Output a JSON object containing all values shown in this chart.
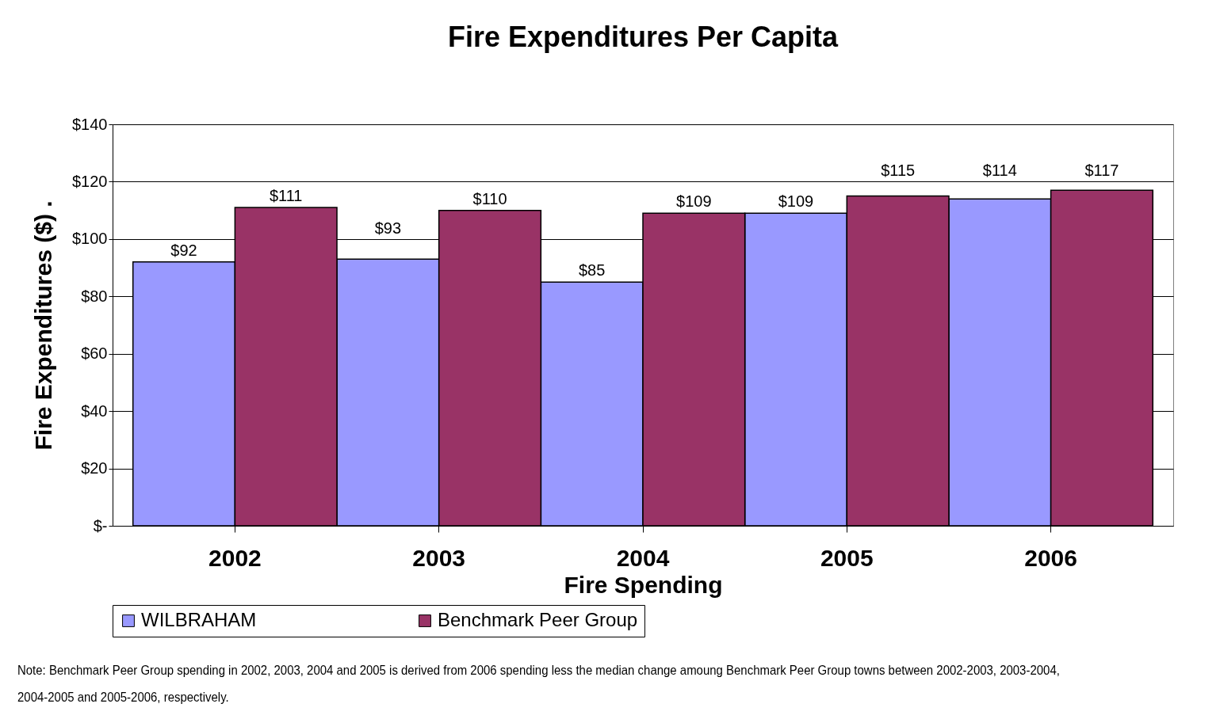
{
  "chart_data": {
    "type": "bar",
    "title": "Fire Expenditures Per Capita",
    "xlabel": "Fire Spending",
    "ylabel": "Fire Expenditures ($)  .",
    "categories": [
      "2002",
      "2003",
      "2004",
      "2005",
      "2006"
    ],
    "series": [
      {
        "name": "WILBRAHAM",
        "color": "#9999ff",
        "values": [
          92,
          93,
          85,
          109,
          114
        ],
        "value_labels": [
          "$92",
          "$93",
          "$85",
          "$109",
          "$114"
        ]
      },
      {
        "name": "Benchmark Peer Group",
        "color": "#993366",
        "values": [
          111,
          110,
          109,
          115,
          117
        ],
        "value_labels": [
          "$111",
          "$110",
          "$109",
          "$115",
          "$117"
        ]
      }
    ],
    "ylim": [
      0,
      140
    ],
    "yticks": [
      {
        "value": 0,
        "label": "$-"
      },
      {
        "value": 20,
        "label": "$20"
      },
      {
        "value": 40,
        "label": "$40"
      },
      {
        "value": 60,
        "label": "$60"
      },
      {
        "value": 80,
        "label": "$80"
      },
      {
        "value": 100,
        "label": "$100"
      },
      {
        "value": 120,
        "label": "$120"
      },
      {
        "value": 140,
        "label": "$140"
      }
    ],
    "grid": "y",
    "legend": "bottom",
    "annotations": [
      "Note:  Benchmark Peer Group spending in 2002, 2003, 2004 and 2005 is derived from 2006 spending less the median change amoung Benchmark Peer Group towns between 2002-2003, 2003-2004, 2004-2005 and 2005-2006, respectively."
    ]
  }
}
